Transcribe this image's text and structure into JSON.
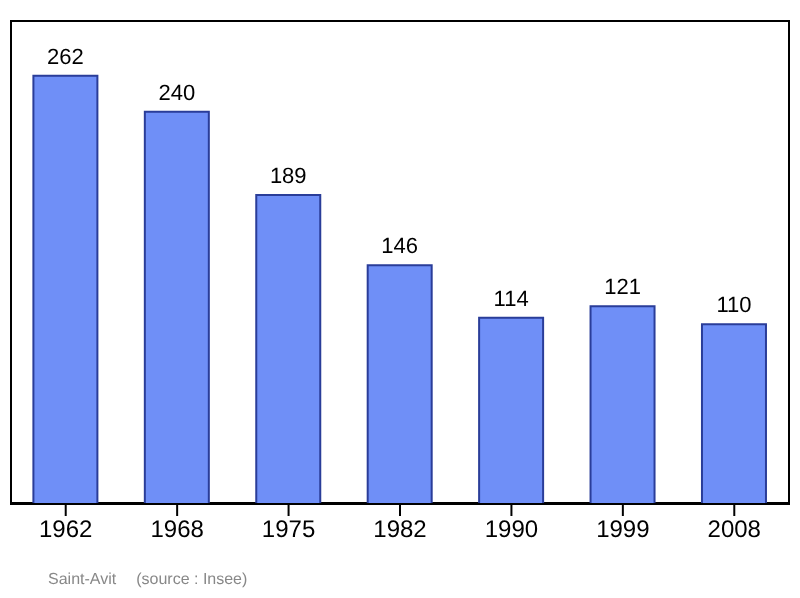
{
  "chart_data": {
    "type": "bar",
    "categories": [
      "1962",
      "1968",
      "1975",
      "1982",
      "1990",
      "1999",
      "2008"
    ],
    "values": [
      262,
      240,
      189,
      146,
      114,
      121,
      110
    ],
    "color": "#6f8ff7",
    "data_labels": true,
    "annotations": [
      "Saint-Avit",
      "(source : Insee)"
    ]
  }
}
